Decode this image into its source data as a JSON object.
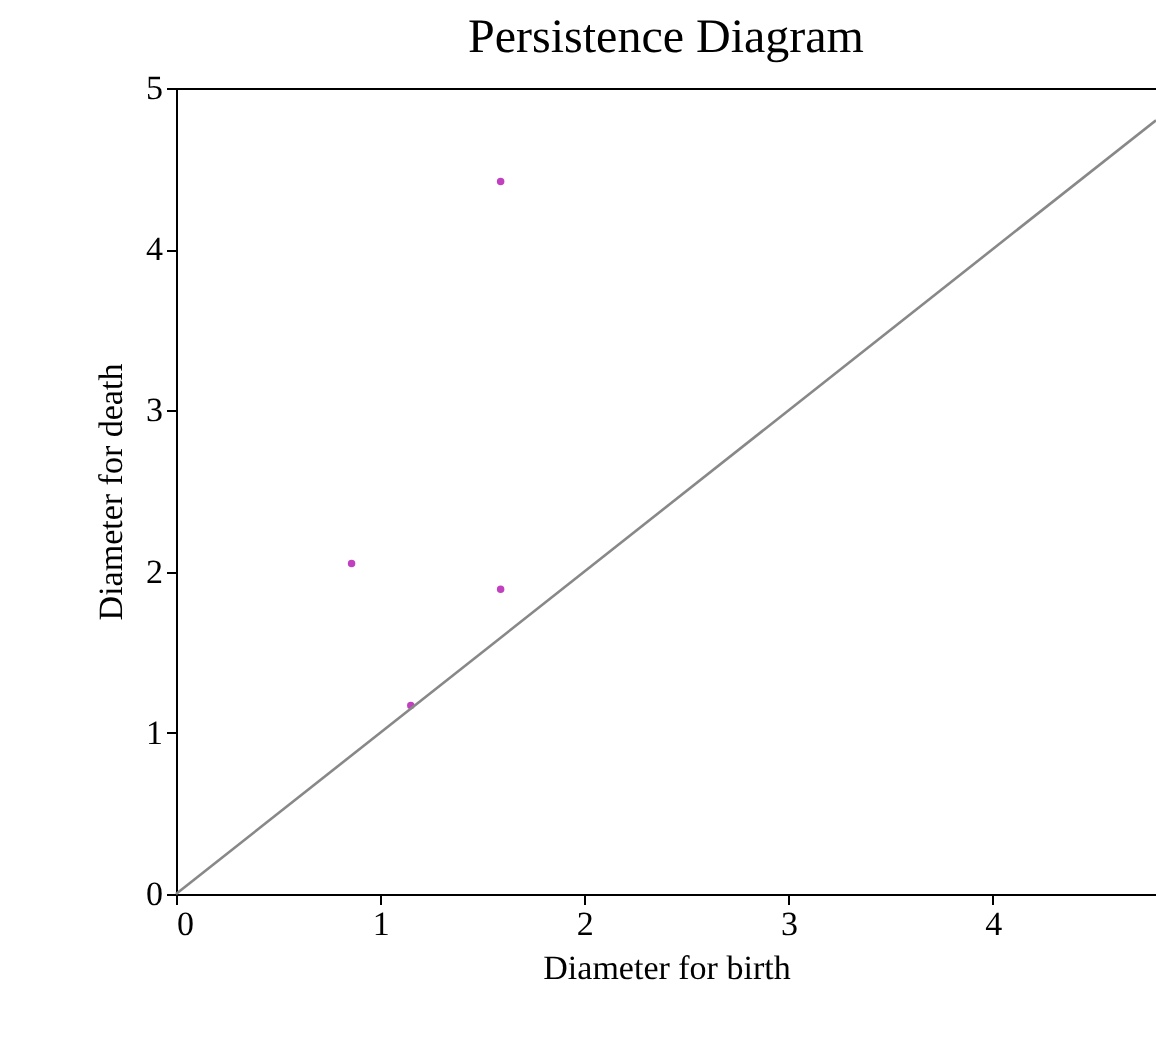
{
  "chart_data": {
    "type": "scatter",
    "title": "Persistence Diagram",
    "xlabel": "Diameter for birth",
    "ylabel": "Diameter for death",
    "xlim": [
      0,
      4.8
    ],
    "ylim": [
      0,
      5
    ],
    "xticks": [
      0,
      1,
      2,
      3,
      4
    ],
    "yticks": [
      0,
      1,
      2,
      3,
      4,
      5
    ],
    "grid": false,
    "series": [
      {
        "marker": "circle",
        "color": "#c040c0",
        "x": [
          0.86,
          1.15,
          1.59,
          1.59
        ],
        "values": [
          2.05,
          1.17,
          1.89,
          4.42
        ]
      },
      {
        "type": "line",
        "marker": "none",
        "color": "#888888",
        "x": [
          0,
          4.8
        ],
        "values": [
          0,
          4.8
        ]
      }
    ]
  }
}
